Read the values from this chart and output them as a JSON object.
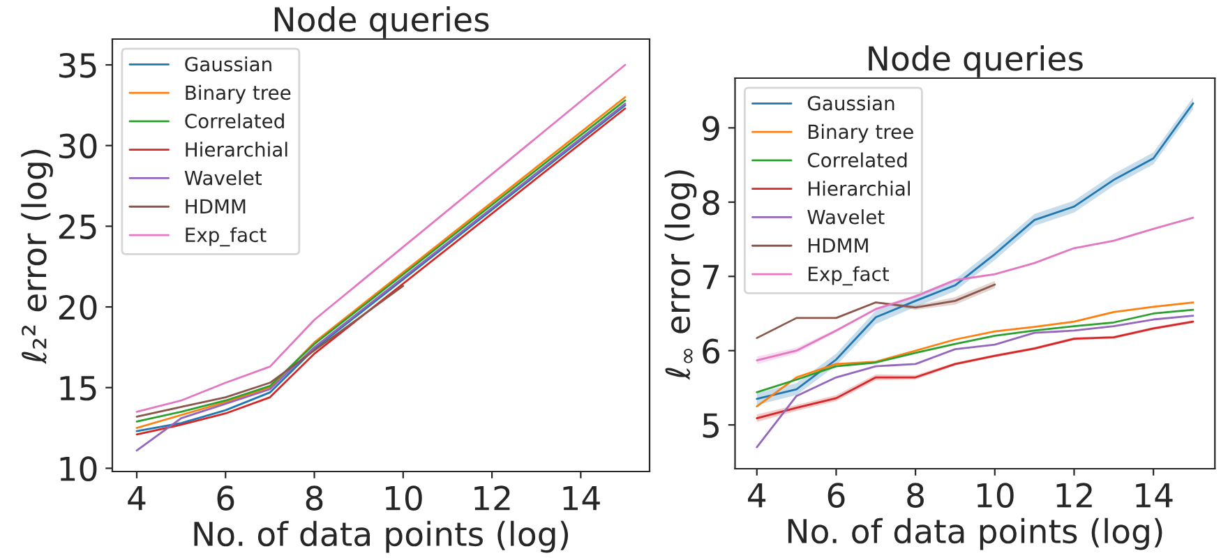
{
  "chart_data": [
    {
      "type": "line",
      "title": "Node queries",
      "xlabel": "No. of data points (log)",
      "ylabel": "ℓ₂² error (log)",
      "xlim": [
        3.45,
        15.55
      ],
      "xticks": [
        4,
        6,
        8,
        10,
        12,
        14
      ],
      "ylim": [
        9.8,
        36.6
      ],
      "yticks": [
        10,
        15,
        20,
        25,
        30,
        35
      ],
      "grid": false,
      "legend": "top left",
      "series": [
        {
          "name": "Gaussian",
          "color": "#1f77b4",
          "x": [
            4,
            5,
            6,
            7,
            8,
            15
          ],
          "values": [
            12.3,
            12.8,
            13.6,
            14.7,
            17.4,
            32.5
          ]
        },
        {
          "name": "Binary tree",
          "color": "#ff7f0e",
          "x": [
            4,
            5,
            6,
            7,
            8,
            15
          ],
          "values": [
            12.5,
            13.3,
            14.1,
            15.0,
            17.8,
            33.0
          ]
        },
        {
          "name": "Correlated",
          "color": "#2ca02c",
          "x": [
            4,
            5,
            6,
            7,
            8,
            15
          ],
          "values": [
            12.9,
            13.5,
            14.2,
            15.1,
            17.7,
            32.8
          ]
        },
        {
          "name": "Hierarchial",
          "color": "#d62728",
          "x": [
            4,
            5,
            6,
            7,
            8,
            15
          ],
          "values": [
            12.1,
            12.7,
            13.4,
            14.4,
            17.1,
            32.3
          ]
        },
        {
          "name": "Wavelet",
          "color": "#9467bd",
          "x": [
            4,
            5,
            6,
            7,
            8,
            15
          ],
          "values": [
            11.1,
            13.1,
            14.0,
            14.9,
            17.5,
            32.6
          ]
        },
        {
          "name": "HDMM",
          "color": "#8c564b",
          "x": [
            4,
            5,
            6,
            7,
            8,
            10
          ],
          "values": [
            13.2,
            13.8,
            14.4,
            15.3,
            17.3,
            21.3
          ]
        },
        {
          "name": "Exp_fact",
          "color": "#e377c2",
          "x": [
            4,
            5,
            6,
            7,
            8,
            15
          ],
          "values": [
            13.5,
            14.2,
            15.3,
            16.3,
            19.2,
            35.0
          ]
        }
      ]
    },
    {
      "type": "line",
      "title": "Node queries",
      "xlabel": "No. of data points (log)",
      "ylabel": "ℓ$_{∞}$ error (log)",
      "xlim": [
        3.45,
        15.55
      ],
      "xticks": [
        4,
        6,
        8,
        10,
        12,
        14
      ],
      "ylim": [
        4.41,
        9.67
      ],
      "yticks": [
        5,
        6,
        7,
        8,
        9
      ],
      "grid": false,
      "legend": "top left",
      "series": [
        {
          "name": "Gaussian",
          "color": "#1f77b4",
          "x": [
            4,
            5,
            6,
            7,
            8,
            9,
            10,
            11,
            12,
            13,
            14,
            15
          ],
          "values": [
            5.35,
            5.48,
            5.88,
            6.45,
            6.67,
            6.88,
            7.3,
            7.76,
            7.94,
            8.3,
            8.59,
            9.33
          ],
          "lower": [
            5.27,
            5.4,
            5.8,
            6.36,
            6.59,
            6.8,
            7.22,
            7.68,
            7.86,
            8.22,
            8.51,
            9.25
          ],
          "upper": [
            5.43,
            5.56,
            5.96,
            6.54,
            6.75,
            6.96,
            7.38,
            7.84,
            8.02,
            8.38,
            8.67,
            9.41
          ]
        },
        {
          "name": "Binary tree",
          "color": "#ff7f0e",
          "x": [
            4,
            5,
            6,
            7,
            8,
            9,
            10,
            11,
            12,
            13,
            14,
            15
          ],
          "values": [
            5.25,
            5.64,
            5.82,
            5.85,
            6.0,
            6.15,
            6.26,
            6.32,
            6.39,
            6.52,
            6.59,
            6.65
          ]
        },
        {
          "name": "Correlated",
          "color": "#2ca02c",
          "x": [
            4,
            5,
            6,
            7,
            8,
            9,
            10,
            11,
            12,
            13,
            14,
            15
          ],
          "values": [
            5.44,
            5.61,
            5.79,
            5.84,
            5.97,
            6.09,
            6.2,
            6.27,
            6.33,
            6.38,
            6.5,
            6.55
          ]
        },
        {
          "name": "Hierarchial",
          "color": "#d62728",
          "x": [
            4,
            5,
            6,
            7,
            8,
            9,
            10,
            11,
            12,
            13,
            14,
            15
          ],
          "values": [
            5.09,
            5.23,
            5.36,
            5.64,
            5.64,
            5.82,
            5.93,
            6.03,
            6.16,
            6.18,
            6.3,
            6.39
          ],
          "lower": [
            5.04,
            5.19,
            5.32,
            5.6,
            5.61,
            5.8,
            5.91,
            6.01,
            6.14,
            6.16,
            6.28,
            6.37
          ],
          "upper": [
            5.14,
            5.27,
            5.4,
            5.68,
            5.67,
            5.84,
            5.95,
            6.05,
            6.18,
            6.2,
            6.32,
            6.41
          ]
        },
        {
          "name": "Wavelet",
          "color": "#9467bd",
          "x": [
            4,
            5,
            6,
            7,
            8,
            9,
            10,
            11,
            12,
            13,
            14,
            15
          ],
          "values": [
            4.7,
            5.39,
            5.64,
            5.79,
            5.82,
            6.02,
            6.08,
            6.24,
            6.27,
            6.33,
            6.42,
            6.47
          ]
        },
        {
          "name": "HDMM",
          "color": "#8c564b",
          "x": [
            4,
            5,
            6,
            7,
            8,
            9,
            10
          ],
          "values": [
            6.17,
            6.44,
            6.44,
            6.65,
            6.58,
            6.67,
            6.89
          ],
          "lower": [
            6.16,
            6.43,
            6.43,
            6.64,
            6.55,
            6.62,
            6.84
          ],
          "upper": [
            6.18,
            6.45,
            6.45,
            6.66,
            6.61,
            6.72,
            6.94
          ]
        },
        {
          "name": "Exp_fact",
          "color": "#e377c2",
          "x": [
            4,
            5,
            6,
            7,
            8,
            9,
            10,
            11,
            12,
            13,
            14,
            15
          ],
          "values": [
            5.87,
            6.0,
            6.27,
            6.56,
            6.73,
            6.95,
            7.03,
            7.18,
            7.38,
            7.48,
            7.64,
            7.79
          ],
          "lower": [
            5.82,
            5.96,
            6.25,
            6.54,
            6.71,
            6.93,
            7.02,
            7.17,
            7.37,
            7.47,
            7.63,
            7.78
          ],
          "upper": [
            5.92,
            6.04,
            6.29,
            6.58,
            6.75,
            6.97,
            7.04,
            7.19,
            7.39,
            7.49,
            7.65,
            7.8
          ]
        }
      ]
    }
  ]
}
